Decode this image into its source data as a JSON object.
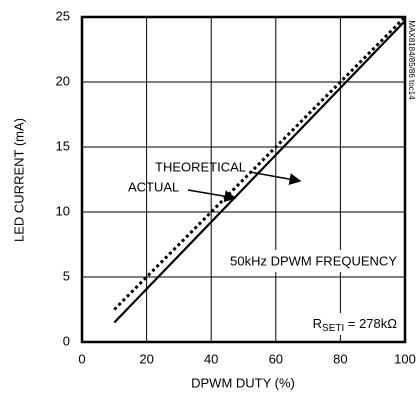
{
  "chart_data": {
    "type": "line",
    "x": [
      10,
      100
    ],
    "series": [
      {
        "name": "THEORETICAL",
        "color": "#000000",
        "style": "dotted",
        "values": [
          2.5,
          25
        ]
      },
      {
        "name": "ACTUAL",
        "color": "#000000",
        "style": "solid",
        "values": [
          1.5,
          24.7
        ]
      }
    ],
    "xlabel": "DPWM DUTY (%)",
    "ylabel": "LED CURRENT (mA)",
    "xlim": [
      0,
      100
    ],
    "xticks": [
      0,
      20,
      40,
      60,
      80,
      100
    ],
    "ylim": [
      0,
      25
    ],
    "yticks": [
      0,
      5,
      10,
      15,
      20,
      25
    ],
    "grid": true,
    "annotations": {
      "frequency": "50kHz DPWM FREQUENCY",
      "resistor": {
        "main": "R",
        "sub": "SETI",
        "rest": " = 278kΩ"
      },
      "figure_id": "MAX8184/85/86 toc14"
    }
  }
}
